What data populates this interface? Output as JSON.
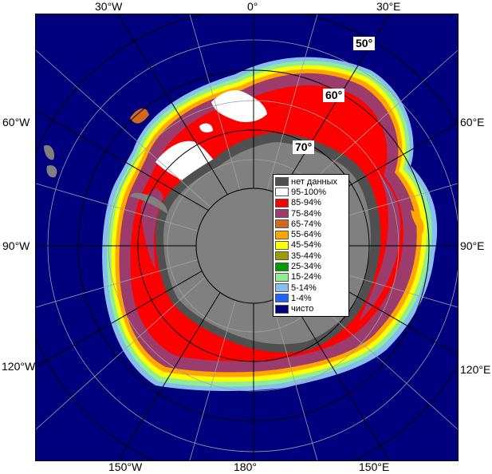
{
  "longitude_labels": {
    "w30": "30°W",
    "zero": "0°",
    "e30": "30°E",
    "w60": "60°W",
    "e60": "60°E",
    "w90": "90°W",
    "e90": "90°E",
    "w120": "120°W",
    "e120": "120°E",
    "w150": "150°W",
    "d180": "180°",
    "e150": "150°E"
  },
  "latitude_labels": {
    "lat50": "50°",
    "lat60": "60°",
    "lat70": "70°"
  },
  "legend": [
    {
      "label": "нет данных",
      "color": "#505050"
    },
    {
      "label": "95-100%",
      "color": "#ffffff"
    },
    {
      "label": "85-94%",
      "color": "#ff0000"
    },
    {
      "label": "75-84%",
      "color": "#9c3c6c"
    },
    {
      "label": "65-74%",
      "color": "#d2691e"
    },
    {
      "label": "55-64%",
      "color": "#ffa500"
    },
    {
      "label": "45-54%",
      "color": "#ffff00"
    },
    {
      "label": "35-44%",
      "color": "#9c9c00"
    },
    {
      "label": "25-34%",
      "color": "#009c00"
    },
    {
      "label": "15-24%",
      "color": "#90ee90"
    },
    {
      "label": "5-14%",
      "color": "#87bef0"
    },
    {
      "label": "1-4%",
      "color": "#1e64ff"
    },
    {
      "label": "чисто",
      "color": "#00007e"
    }
  ],
  "colors": {
    "ocean": "#00007e",
    "land": "#808080",
    "land_dark": "#505050",
    "ice_high": "#ff0000",
    "ice_mid": "#9c3c6c",
    "ice_full": "#ffffff",
    "grid": "#000000"
  }
}
